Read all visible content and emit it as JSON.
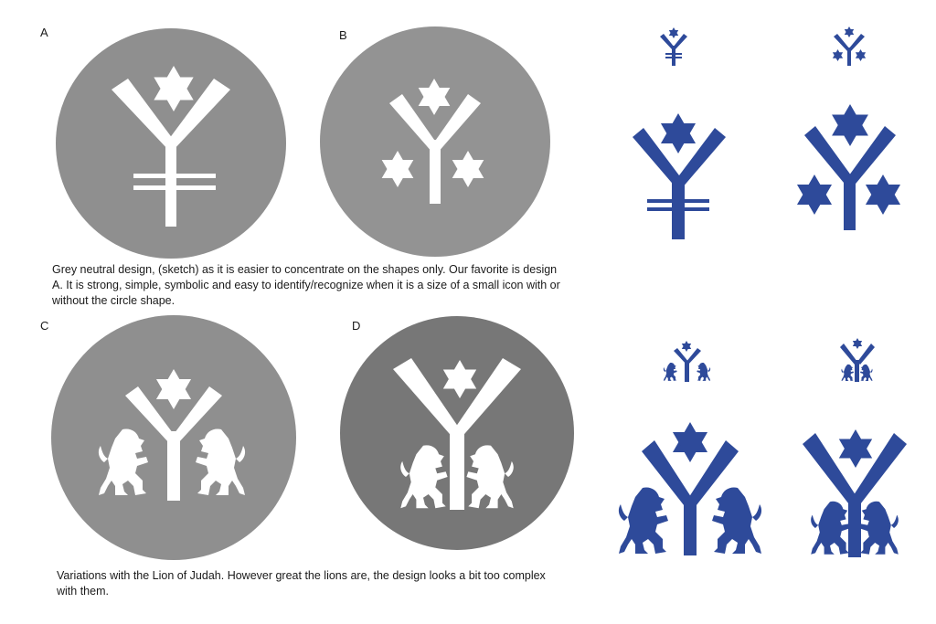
{
  "labels": {
    "a": "A",
    "b": "B",
    "c": "C",
    "d": "D"
  },
  "captions": {
    "top_line1": "Grey neutral design, (sketch) as it is easier to concentrate on the shapes only. Our favorite is  design",
    "top_line2": "A. It is strong, simple, symbolic  and easy to identify/recognize when it is a size of a small icon with or",
    "top_line3": "without the  circle shape.",
    "bottom_line1": "Variations with the Lion of Judah. However great the lions are, the design looks a bit too complex",
    "bottom_line2": "with them."
  },
  "colors": {
    "grey_circle": "#8f8f8f",
    "grey_circle_dark": "#777777",
    "blue": "#2e4a9a",
    "white": "#ffffff"
  },
  "icons": [
    "y-star-emblem",
    "y-three-stars-emblem",
    "y-lions-emblem",
    "y-lions-touching-emblem",
    "lion-of-judah-icon",
    "star-of-david-icon"
  ]
}
